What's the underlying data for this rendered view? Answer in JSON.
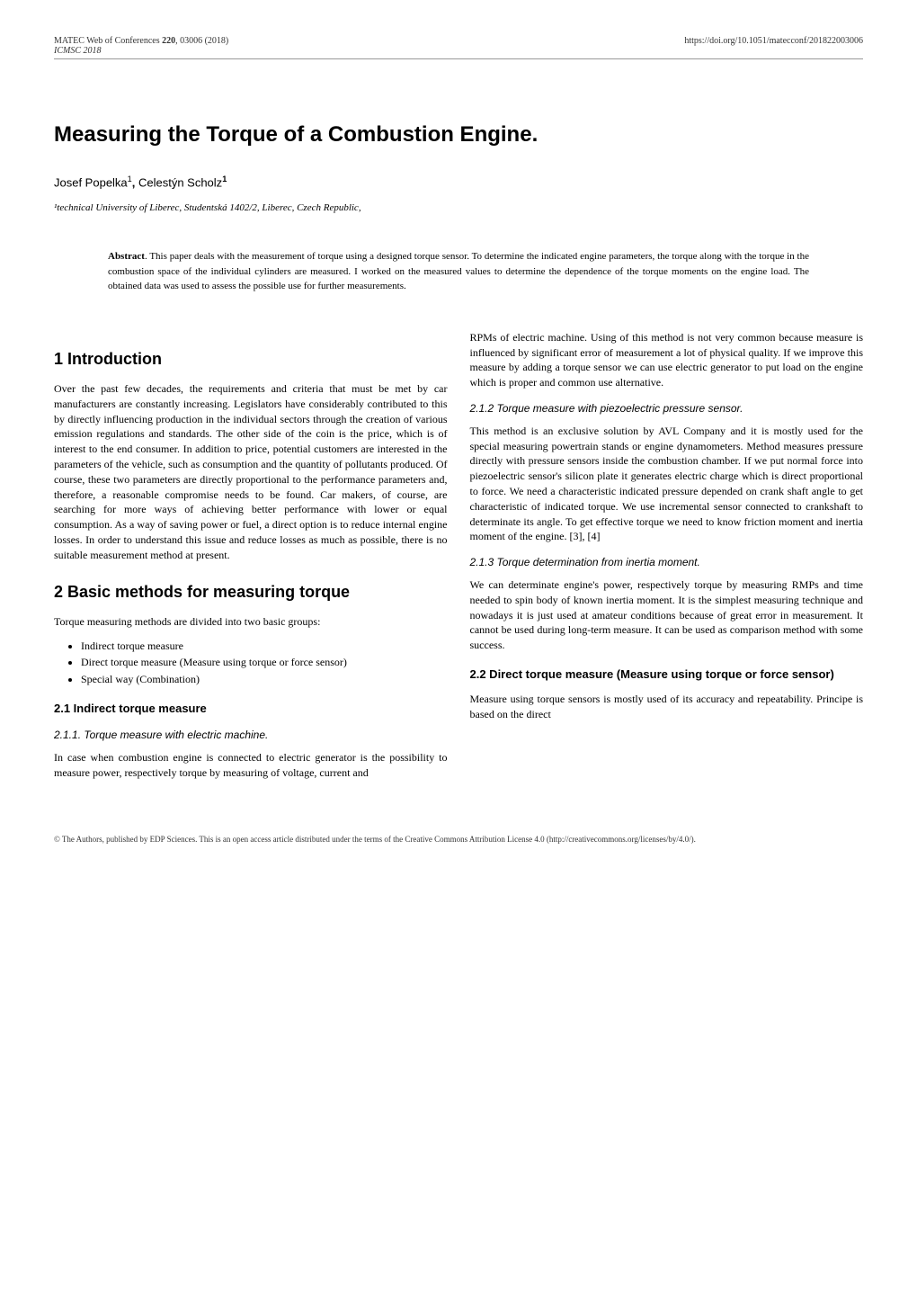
{
  "header": {
    "journal_ref_prefix": "MATEC Web of Conferences ",
    "volume": "220",
    "article": ", 03006 (2018)",
    "conference": "ICMSC 2018",
    "doi": "https://doi.org/10.1051/matecconf/201822003006"
  },
  "title": "Measuring the Torque of a Combustion Engine.",
  "authors": "Josef Popelka¹, Celestýn Scholz¹",
  "affiliation": "¹technical University of Liberec, Studentská 1402/2, Liberec, Czech Republic,",
  "abstract": {
    "label": "Abstract",
    "text": ". This paper deals with the measurement of torque using a designed torque sensor. To determine the indicated engine parameters, the torque along with the torque in the combustion space of the individual cylinders are measured. I worked on the measured values to determine the dependence of the torque moments on the engine load. The obtained data was used to assess the possible use for further measurements."
  },
  "left_column": {
    "section1": {
      "heading": "1 Introduction",
      "para": "Over the past few decades, the requirements and criteria that must be met by car manufacturers are constantly increasing. Legislators have considerably contributed to this by directly influencing production in the individual sectors through the creation of various emission regulations and standards. The other side of the coin is the price, which is of interest to the end consumer. In addition to price, potential customers are interested in the parameters of the vehicle, such as consumption and the quantity of pollutants produced. Of course, these two parameters are directly proportional to the performance parameters and, therefore, a reasonable compromise needs to be found. Car makers, of course, are searching for more ways of achieving better performance with lower or equal consumption. As a way of saving power or fuel, a direct option is to reduce internal engine losses. In order to understand this issue and reduce losses as much as possible, there is no suitable measurement method at present."
    },
    "section2": {
      "heading": "2 Basic methods for measuring torque",
      "intro": "Torque measuring methods are divided into two basic groups:",
      "bullets": [
        "Indirect torque measure",
        "Direct torque measure (Measure using torque or force sensor)",
        "Special way (Combination)"
      ]
    },
    "section2_1": {
      "heading": "2.1 Indirect torque measure"
    },
    "section2_1_1": {
      "heading": "2.1.1. Torque measure with electric machine.",
      "para": "In case when combustion engine is connected to electric generator is the possibility to measure power, respectively torque by measuring of voltage, current and"
    }
  },
  "right_column": {
    "para_cont": "RPMs of electric machine. Using of this method is not very common because measure is influenced by significant error of measurement a lot of physical quality. If we improve this measure by adding a torque sensor we can use electric generator to put load on the engine which is proper and common use alternative.",
    "section2_1_2": {
      "heading": "2.1.2 Torque measure with piezoelectric pressure sensor.",
      "para": "This method is an exclusive solution by AVL Company and it is mostly used for the special measuring powertrain stands or engine dynamometers. Method measures pressure directly with pressure sensors inside the combustion chamber. If we put normal force into piezoelectric sensor's silicon plate it generates electric charge which is direct proportional to force. We need a characteristic indicated pressure depended on crank shaft angle to get characteristic of indicated torque. We use incremental sensor connected to crankshaft to determinate its angle. To get effective torque we need to know friction moment and inertia moment of the engine. [3], [4]"
    },
    "section2_1_3": {
      "heading": "2.1.3 Torque determination from inertia moment.",
      "para": "We can determinate engine's power, respectively torque by measuring RMPs and time needed to spin body of known inertia moment. It is the simplest measuring technique and nowadays it is just used at amateur conditions because of great error in measurement. It cannot be used during long-term measure. It can be used as comparison method with some success."
    },
    "section2_2": {
      "heading": "2.2 Direct torque measure (Measure using torque or force sensor)",
      "para": "Measure using torque sensors is mostly used of its accuracy and repeatability. Principe is based on the direct"
    }
  },
  "footer": "© The Authors, published by EDP Sciences. This is an open access article distributed under the terms of the Creative Commons Attribution License 4.0 (http://creativecommons.org/licenses/by/4.0/)."
}
